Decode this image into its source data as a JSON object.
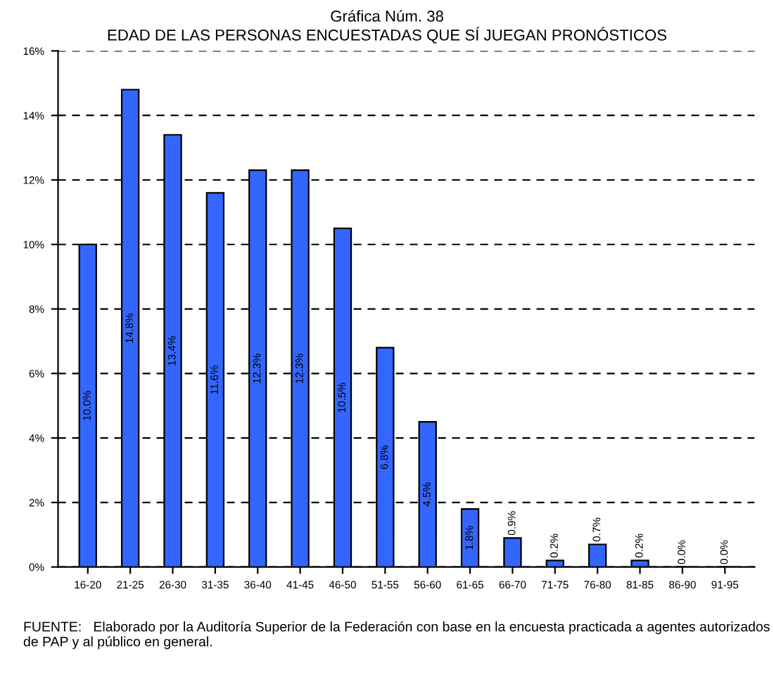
{
  "chart_data": {
    "type": "bar",
    "title": "Gráfica Núm. 38",
    "subtitle": "EDAD DE LAS PERSONAS ENCUESTADAS QUE SÍ JUEGAN PRONÓSTICOS",
    "categories": [
      "16-20",
      "21-25",
      "26-30",
      "31-35",
      "36-40",
      "41-45",
      "46-50",
      "51-55",
      "56-60",
      "61-65",
      "66-70",
      "71-75",
      "76-80",
      "81-85",
      "86-90",
      "91-95"
    ],
    "values": [
      10.0,
      14.8,
      13.4,
      11.6,
      12.3,
      12.3,
      10.5,
      6.8,
      4.5,
      1.8,
      0.9,
      0.2,
      0.7,
      0.2,
      0.0,
      0.0
    ],
    "value_labels": [
      "10.0%",
      "14.8%",
      "13.4%",
      "11.6%",
      "12.3%",
      "12.3%",
      "10.5%",
      "6.8%",
      "4.5%",
      "1.8%",
      "0.9%",
      "0.2%",
      "0.7%",
      "0.2%",
      "0.0%",
      "0.0%"
    ],
    "color": "#3366ff",
    "ylim": [
      0,
      16
    ],
    "yticks": [
      {
        "value": 0,
        "label": "0%"
      },
      {
        "value": 2,
        "label": "2%"
      },
      {
        "value": 4,
        "label": "4%"
      },
      {
        "value": 6,
        "label": "6%"
      },
      {
        "value": 8,
        "label": "8%"
      },
      {
        "value": 10,
        "label": "10%"
      },
      {
        "value": 12,
        "label": "12%"
      },
      {
        "value": 14,
        "label": "14%"
      },
      {
        "value": 16,
        "label": "16%"
      }
    ],
    "grid": "y",
    "legend": false,
    "annotations": [
      "FUENTE:   Elaborado por la Auditoría Superior de la Federación con base en la encuesta practicada a agentes autorizados de PAP y al público en general."
    ]
  }
}
